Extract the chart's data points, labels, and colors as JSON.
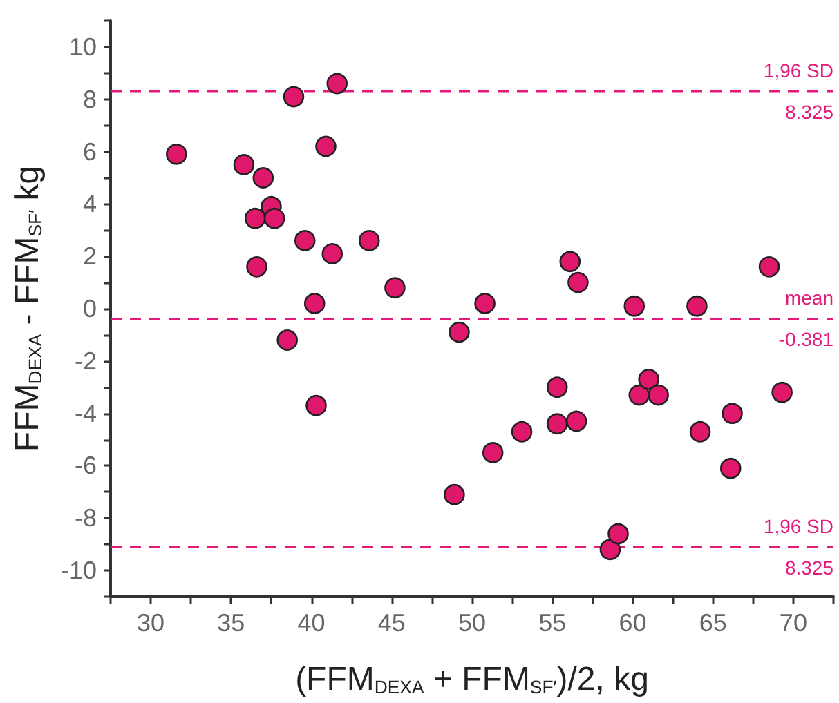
{
  "chart_data": {
    "type": "scatter",
    "xlabel": "(FFM$_{DEXA}$ + FFM$_{SF′}$)/2, kg",
    "ylabel": "FFM$_{DEXA}$ - FFM$_{SF′}$ kg",
    "x": [
      31.6,
      35.8,
      37.0,
      37.5,
      36.5,
      37.7,
      36.6,
      38.9,
      41.6,
      40.9,
      39.6,
      41.3,
      43.6,
      40.2,
      45.2,
      38.5,
      40.3,
      49.2,
      50.8,
      48.9,
      51.3,
      53.1,
      55.3,
      55.3,
      56.5,
      56.1,
      56.6,
      58.6,
      59.1,
      60.1,
      60.4,
      61.0,
      61.6,
      64.0,
      64.2,
      66.1,
      66.2,
      68.5,
      69.3
    ],
    "values": [
      5.9,
      5.5,
      5.0,
      3.9,
      3.45,
      3.45,
      1.6,
      8.1,
      8.6,
      6.2,
      2.6,
      2.1,
      2.6,
      0.2,
      0.8,
      -1.2,
      -3.7,
      -0.9,
      0.2,
      -7.1,
      -5.5,
      -4.7,
      -4.4,
      -3.0,
      -4.3,
      1.8,
      1.0,
      -9.2,
      -8.6,
      0.1,
      -3.3,
      -2.7,
      -3.3,
      0.1,
      -4.7,
      -6.1,
      -4.0,
      1.6,
      -3.2
    ],
    "color": "#e0186c",
    "marker": "circle",
    "xlim": [
      27.5,
      72.5
    ],
    "ylim": [
      -11,
      11
    ],
    "xticks": [
      {
        "value": 27.5,
        "label": null
      },
      30,
      {
        "value": 32.5,
        "label": null
      },
      35,
      {
        "value": 37.5,
        "label": null
      },
      40,
      {
        "value": 42.5,
        "label": null
      },
      45,
      {
        "value": 47.5,
        "label": null
      },
      50,
      {
        "value": 52.5,
        "label": null
      },
      55,
      {
        "value": 57.5,
        "label": null
      },
      60,
      {
        "value": 62.5,
        "label": null
      },
      65,
      {
        "value": 67.5,
        "label": null
      },
      70,
      {
        "value": 72.5,
        "label": null
      }
    ],
    "yticks": [
      {
        "value": -11,
        "label": null
      },
      -10,
      {
        "value": -9,
        "label": null
      },
      -8,
      {
        "value": -7,
        "label": null
      },
      -6,
      {
        "value": -5,
        "label": null
      },
      -4,
      {
        "value": -3,
        "label": null
      },
      -2,
      {
        "value": -1,
        "label": null
      },
      0,
      {
        "value": 1,
        "label": null
      },
      2,
      {
        "value": 3,
        "label": null
      },
      4,
      {
        "value": 5,
        "label": null
      },
      6,
      {
        "value": 7,
        "label": null
      },
      8,
      {
        "value": 9,
        "label": null
      },
      10,
      {
        "value": 11,
        "label": null
      }
    ],
    "ref_lines": [
      {
        "axis": "y",
        "value": 8.325,
        "label": "1,96 SD\n8.325",
        "color": "#e5197a",
        "line_style": "dashed"
      },
      {
        "axis": "y",
        "value": -0.381,
        "label": "mean\n-0.381",
        "color": "#e5197a",
        "line_style": "dashed"
      },
      {
        "axis": "y",
        "value": -9.09,
        "label": "1,96 SD\n8.325",
        "color": "#e5197a",
        "line_style": "dashed"
      }
    ]
  }
}
